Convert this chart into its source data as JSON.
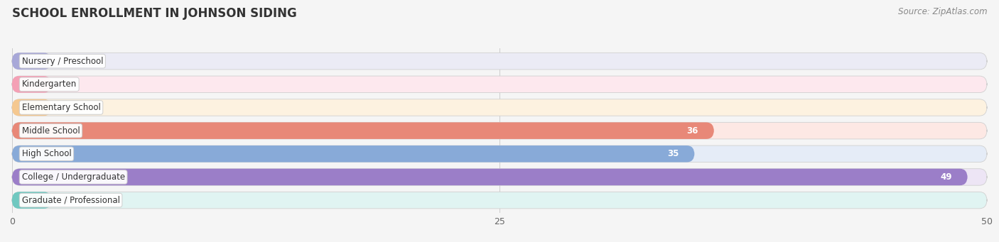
{
  "title": "SCHOOL ENROLLMENT IN JOHNSON SIDING",
  "source": "Source: ZipAtlas.com",
  "categories": [
    "Nursery / Preschool",
    "Kindergarten",
    "Elementary School",
    "Middle School",
    "High School",
    "College / Undergraduate",
    "Graduate / Professional"
  ],
  "values": [
    0,
    0,
    0,
    36,
    35,
    49,
    0
  ],
  "bar_colors": [
    "#a8a8d8",
    "#f4a0b5",
    "#f5c890",
    "#e88878",
    "#88aad8",
    "#9b7ec8",
    "#70c8c0"
  ],
  "bar_bg_colors": [
    "#ebebf5",
    "#fde8ee",
    "#fdf2e0",
    "#fde8e4",
    "#e5ecf7",
    "#ede5f5",
    "#e0f4f2"
  ],
  "xlim": [
    0,
    50
  ],
  "xticks": [
    0,
    25,
    50
  ],
  "label_fontsize": 8.5,
  "value_fontsize": 8.5,
  "title_fontsize": 12,
  "source_fontsize": 8.5,
  "background_color": "#f5f5f5"
}
